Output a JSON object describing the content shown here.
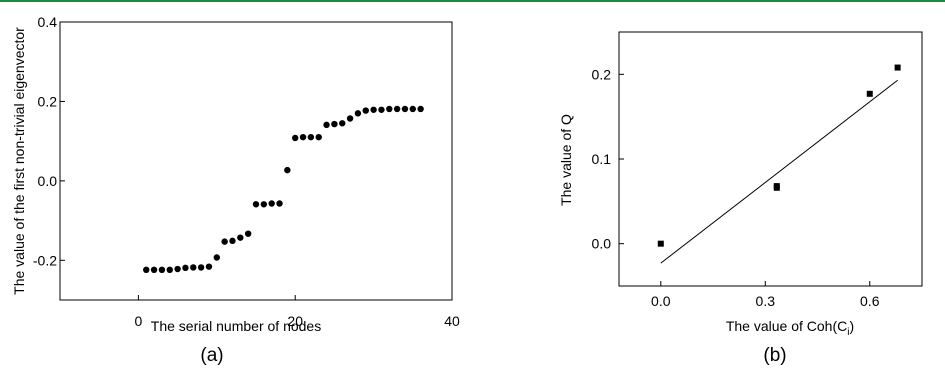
{
  "colors": {
    "top_rule": "#1e8a3c",
    "ink": "#000000"
  },
  "chart_data": [
    {
      "type": "scatter",
      "caption": "(a)",
      "xlabel": "The serial number of nodes",
      "ylabel": "The value of the first non-trivial eigenvector",
      "xlim": [
        -10,
        40
      ],
      "ylim": [
        -0.3,
        0.4
      ],
      "xticks": [
        0,
        20,
        40
      ],
      "xtick_labels": [
        "0",
        "20",
        "40"
      ],
      "yticks": [
        0.4,
        0.2,
        0.0,
        -0.2
      ],
      "ytick_labels": [
        "0.4",
        "0.2",
        "0.0",
        "-0.2"
      ],
      "grid": false,
      "x": [
        1,
        2,
        3,
        4,
        5,
        6,
        7,
        8,
        9,
        10,
        11,
        12,
        13,
        14,
        15,
        16,
        17,
        18,
        19,
        20,
        21,
        22,
        23,
        24,
        25,
        26,
        27,
        28,
        29,
        30,
        31,
        32,
        33,
        34,
        35,
        36
      ],
      "y": [
        -0.224,
        -0.224,
        -0.224,
        -0.224,
        -0.222,
        -0.219,
        -0.218,
        -0.218,
        -0.216,
        -0.193,
        -0.153,
        -0.151,
        -0.143,
        -0.133,
        -0.059,
        -0.059,
        -0.057,
        -0.057,
        0.027,
        0.108,
        0.11,
        0.11,
        0.11,
        0.141,
        0.143,
        0.145,
        0.157,
        0.17,
        0.177,
        0.179,
        0.179,
        0.181,
        0.181,
        0.181,
        0.181,
        0.181
      ]
    },
    {
      "type": "scatter",
      "caption": "(b)",
      "xlabel": "The value of Coh(C",
      "xlabel_sub": "i",
      "xlabel_end": ")",
      "ylabel": "The value of Q",
      "xlim": [
        -0.12,
        0.75
      ],
      "ylim": [
        -0.05,
        0.25
      ],
      "xticks": [
        0.0,
        0.3,
        0.6
      ],
      "xtick_labels": [
        "0.0",
        "0.3",
        "0.6"
      ],
      "yticks": [
        0.0,
        0.1,
        0.2
      ],
      "ytick_labels": [
        "0.0",
        "0.1",
        "0.2"
      ],
      "grid": false,
      "x": [
        0.0,
        0.333,
        0.333,
        0.6,
        0.68
      ],
      "y": [
        0.0,
        0.068,
        0.066,
        0.177,
        0.208
      ],
      "fit_line": {
        "x": [
          0.0,
          0.68
        ],
        "y": [
          -0.023,
          0.193
        ]
      }
    }
  ]
}
